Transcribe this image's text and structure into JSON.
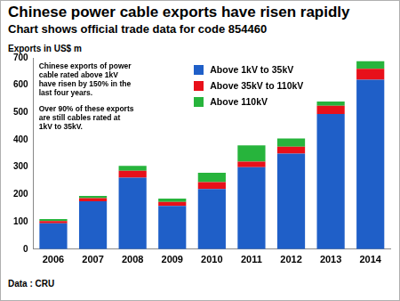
{
  "chart_data": {
    "type": "bar",
    "title": "Chinese power cable exports have risen rapidly",
    "subtitle": "Chart shows official trade data for code 854460",
    "y_label": "Exports in US$ m",
    "annotations": [
      "Chinese exports of power cable rated above 1kV have risen by 150% in the last four years.",
      "Over 90% of these exports are still cables rated at 1kV to 35kV."
    ],
    "source": "Data : CRU",
    "categories": [
      "2006",
      "2007",
      "2008",
      "2009",
      "2010",
      "2011",
      "2012",
      "2013",
      "2014"
    ],
    "series": [
      {
        "name": "Above 1kV to 35kV",
        "color": "#1f5fc8",
        "values": [
          95,
          175,
          262,
          158,
          220,
          300,
          350,
          495,
          620
        ]
      },
      {
        "name": "Above 35kV to 110kV",
        "color": "#e8101a",
        "values": [
          8,
          12,
          25,
          15,
          25,
          20,
          25,
          30,
          40
        ]
      },
      {
        "name": "Above 110kV",
        "color": "#27b43c",
        "values": [
          7,
          8,
          18,
          12,
          35,
          60,
          30,
          15,
          28
        ]
      }
    ],
    "ylim": [
      0,
      700
    ],
    "yticks": [
      0,
      100,
      200,
      300,
      400,
      500,
      600,
      700
    ],
    "stacked": true,
    "grid": false,
    "legend": "top"
  }
}
